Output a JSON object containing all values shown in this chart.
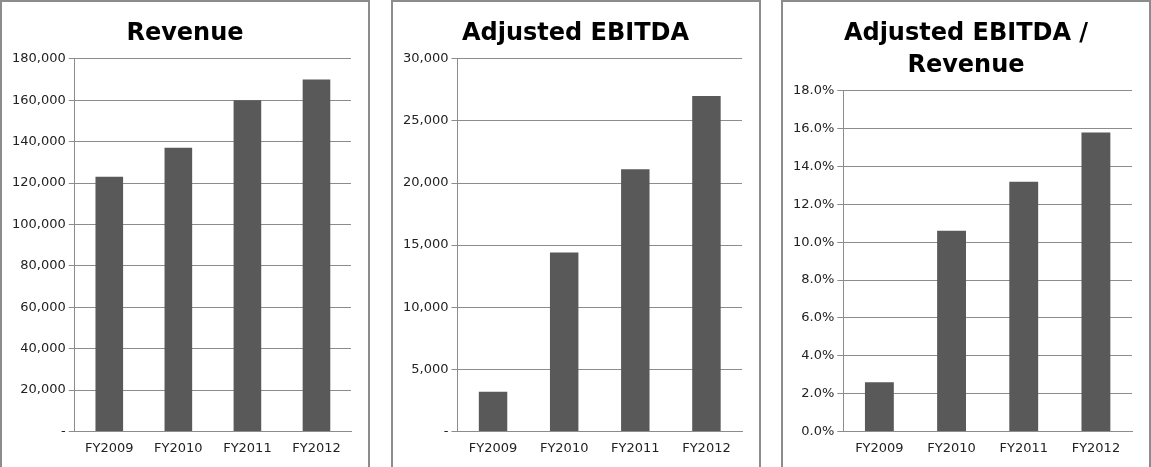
{
  "chart_data": [
    {
      "type": "bar",
      "title": "Revenue",
      "categories": [
        "FY2009",
        "FY2010",
        "FY2011",
        "FY2012"
      ],
      "values": [
        123000,
        137000,
        160000,
        170000
      ],
      "color": "#595959",
      "ylim": [
        0,
        180000
      ],
      "yticks": [
        {
          "value": 0,
          "label": "-"
        },
        {
          "value": 20000,
          "label": "20,000"
        },
        {
          "value": 40000,
          "label": "40,000"
        },
        {
          "value": 60000,
          "label": "60,000"
        },
        {
          "value": 80000,
          "label": "80,000"
        },
        {
          "value": 100000,
          "label": "100,000"
        },
        {
          "value": 120000,
          "label": "120,000"
        },
        {
          "value": 140000,
          "label": "140,000"
        },
        {
          "value": 160000,
          "label": "160,000"
        },
        {
          "value": 180000,
          "label": "180,000"
        }
      ],
      "grid": "y",
      "legend": false
    },
    {
      "type": "bar",
      "title": "Adjusted EBITDA",
      "categories": [
        "FY2009",
        "FY2010",
        "FY2011",
        "FY2012"
      ],
      "values": [
        3200,
        14400,
        21100,
        27000
      ],
      "color": "#595959",
      "ylim": [
        0,
        30000
      ],
      "yticks": [
        {
          "value": 0,
          "label": "-"
        },
        {
          "value": 5000,
          "label": "5,000"
        },
        {
          "value": 10000,
          "label": "10,000"
        },
        {
          "value": 15000,
          "label": "15,000"
        },
        {
          "value": 20000,
          "label": "20,000"
        },
        {
          "value": 25000,
          "label": "25,000"
        },
        {
          "value": 30000,
          "label": "30,000"
        }
      ],
      "grid": "y",
      "legend": false
    },
    {
      "type": "bar",
      "title": "Adjusted EBITDA / Revenue",
      "categories": [
        "FY2009",
        "FY2010",
        "FY2011",
        "FY2012"
      ],
      "values": [
        2.6,
        10.6,
        13.2,
        15.8
      ],
      "color": "#595959",
      "ylim": [
        0,
        18
      ],
      "yticks": [
        {
          "value": 0,
          "label": "0.0%"
        },
        {
          "value": 2,
          "label": "2.0%"
        },
        {
          "value": 4,
          "label": "4.0%"
        },
        {
          "value": 6,
          "label": "6.0%"
        },
        {
          "value": 8,
          "label": "8.0%"
        },
        {
          "value": 10,
          "label": "10.0%"
        },
        {
          "value": 12,
          "label": "12.0%"
        },
        {
          "value": 14,
          "label": "14.0%"
        },
        {
          "value": 16,
          "label": "16.0%"
        },
        {
          "value": 18,
          "label": "18.0%"
        }
      ],
      "grid": "y",
      "legend": false
    }
  ]
}
